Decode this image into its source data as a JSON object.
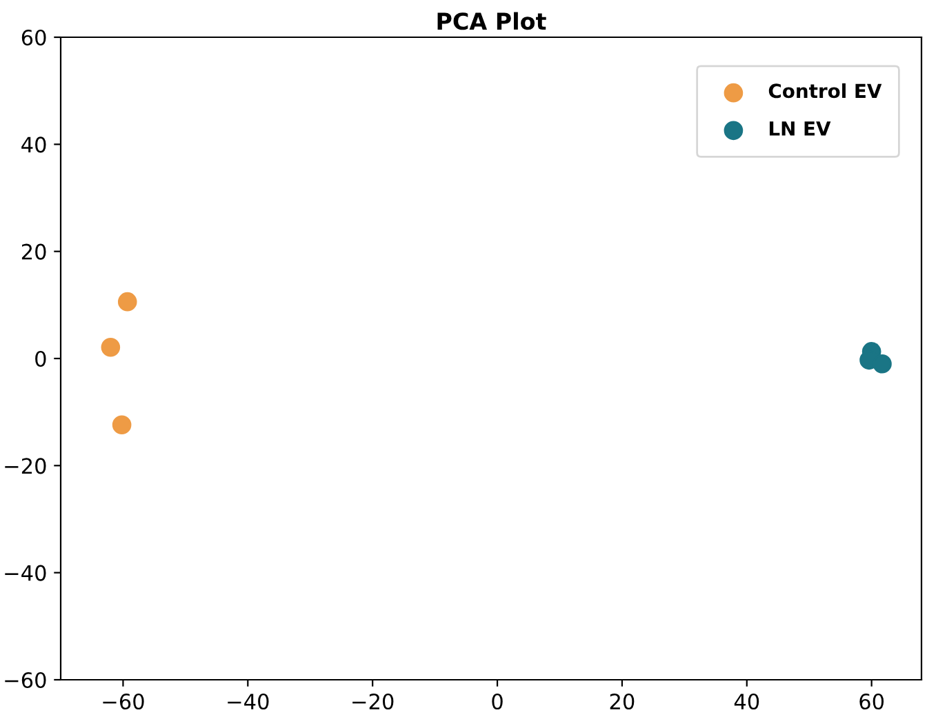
{
  "chart_data": {
    "type": "scatter",
    "title": "PCA Plot",
    "series": [
      {
        "name": "Control EV",
        "color": "#ee9b45",
        "x": [
          -59.3,
          -62.0,
          -60.2
        ],
        "values": [
          10.6,
          2.1,
          -12.4
        ]
      },
      {
        "name": "LN EV",
        "color": "#1a7585",
        "x": [
          60.0,
          59.6,
          61.7
        ],
        "values": [
          1.3,
          -0.3,
          -1.0
        ]
      }
    ],
    "xlim": [
      -70,
      68
    ],
    "xticks": [
      -60,
      -40,
      -20,
      0,
      20,
      40,
      60
    ],
    "ylim": [
      -60,
      60
    ],
    "yticks": [
      -60,
      -40,
      -20,
      0,
      20,
      40,
      60
    ],
    "grid": false,
    "legend": "top right",
    "marker": "circle"
  }
}
